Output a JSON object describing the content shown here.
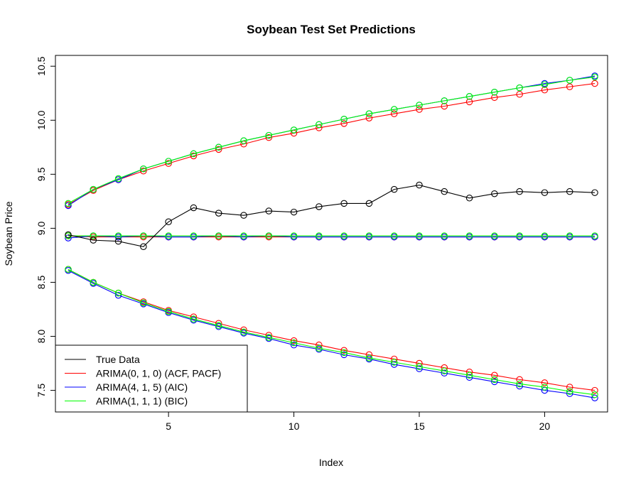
{
  "chart_data": {
    "type": "line",
    "title": "Soybean Test Set Predictions",
    "xlabel": "Index",
    "ylabel": "Soybean Price",
    "xlim": [
      1,
      22
    ],
    "ylim": [
      7.3,
      10.6
    ],
    "xticks": [
      5,
      10,
      15,
      20
    ],
    "xtick_labels": [
      "5",
      "10",
      "15",
      "20"
    ],
    "yticks": [
      7.5,
      8.0,
      8.5,
      9.0,
      9.5,
      10.0,
      10.5
    ],
    "ytick_labels": [
      "7.5",
      "8.0",
      "8.5",
      "9.0",
      "9.5",
      "10.0",
      "10.5"
    ],
    "grid": false,
    "legend_position": "bottom-left",
    "legend": [
      {
        "label": "True Data",
        "color": "#000000"
      },
      {
        "label": "ARIMA(0, 1, 0) (ACF, PACF)",
        "color": "#ff0000"
      },
      {
        "label": "ARIMA(4, 1, 5) (AIC)",
        "color": "#0000ff"
      },
      {
        "label": "ARIMA(1, 1, 1) (BIC)",
        "color": "#00ff00"
      }
    ],
    "x": [
      1,
      2,
      3,
      4,
      5,
      6,
      7,
      8,
      9,
      10,
      11,
      12,
      13,
      14,
      15,
      16,
      17,
      18,
      19,
      20,
      21,
      22
    ],
    "series": [
      {
        "key": "true",
        "color": "#000000",
        "values": [
          8.94,
          8.89,
          8.88,
          8.83,
          9.06,
          9.19,
          9.14,
          9.12,
          9.16,
          9.15,
          9.2,
          9.23,
          9.23,
          9.36,
          9.4,
          9.34,
          9.28,
          9.32,
          9.34,
          9.33,
          9.34,
          9.33
        ]
      },
      {
        "key": "arima010_mean",
        "color": "#ff0000",
        "values": [
          8.93,
          8.92,
          8.92,
          8.92,
          8.92,
          8.92,
          8.92,
          8.92,
          8.92,
          8.92,
          8.92,
          8.92,
          8.92,
          8.92,
          8.92,
          8.92,
          8.92,
          8.92,
          8.92,
          8.92,
          8.92,
          8.92
        ]
      },
      {
        "key": "arima010_upper",
        "color": "#ff0000",
        "values": [
          9.22,
          9.35,
          9.45,
          9.53,
          9.6,
          9.67,
          9.73,
          9.78,
          9.84,
          9.88,
          9.93,
          9.97,
          10.02,
          10.06,
          10.1,
          10.13,
          10.17,
          10.21,
          10.24,
          10.28,
          10.31,
          10.34
        ]
      },
      {
        "key": "arima010_lower",
        "color": "#ff0000",
        "values": [
          8.62,
          8.5,
          8.4,
          8.32,
          8.24,
          8.18,
          8.12,
          8.06,
          8.01,
          7.96,
          7.92,
          7.87,
          7.83,
          7.79,
          7.75,
          7.71,
          7.67,
          7.64,
          7.6,
          7.57,
          7.53,
          7.5
        ]
      },
      {
        "key": "arima415_mean",
        "color": "#0000ff",
        "values": [
          8.91,
          8.93,
          8.92,
          8.93,
          8.92,
          8.92,
          8.93,
          8.92,
          8.93,
          8.92,
          8.92,
          8.92,
          8.92,
          8.92,
          8.92,
          8.92,
          8.92,
          8.92,
          8.92,
          8.92,
          8.92,
          8.92
        ]
      },
      {
        "key": "arima415_upper",
        "color": "#0000ff",
        "values": [
          9.21,
          9.36,
          9.45,
          9.55,
          9.62,
          9.69,
          9.75,
          9.81,
          9.86,
          9.91,
          9.96,
          10.01,
          10.06,
          10.1,
          10.14,
          10.18,
          10.22,
          10.26,
          10.3,
          10.34,
          10.37,
          10.41
        ]
      },
      {
        "key": "arima415_lower",
        "color": "#0000ff",
        "values": [
          8.61,
          8.49,
          8.38,
          8.3,
          8.22,
          8.15,
          8.09,
          8.03,
          7.98,
          7.92,
          7.88,
          7.83,
          7.79,
          7.74,
          7.7,
          7.66,
          7.62,
          7.58,
          7.54,
          7.5,
          7.47,
          7.43
        ]
      },
      {
        "key": "arima111_mean",
        "color": "#00ff00",
        "values": [
          8.93,
          8.93,
          8.93,
          8.93,
          8.93,
          8.93,
          8.93,
          8.93,
          8.93,
          8.93,
          8.93,
          8.93,
          8.93,
          8.93,
          8.93,
          8.93,
          8.93,
          8.93,
          8.93,
          8.93,
          8.93,
          8.93
        ]
      },
      {
        "key": "arima111_upper",
        "color": "#00ff00",
        "values": [
          9.23,
          9.36,
          9.46,
          9.55,
          9.62,
          9.69,
          9.75,
          9.81,
          9.86,
          9.91,
          9.96,
          10.01,
          10.06,
          10.1,
          10.14,
          10.18,
          10.22,
          10.26,
          10.3,
          10.33,
          10.37,
          10.4
        ]
      },
      {
        "key": "arima111_lower",
        "color": "#00ff00",
        "values": [
          8.62,
          8.5,
          8.4,
          8.31,
          8.23,
          8.16,
          8.1,
          8.04,
          7.99,
          7.94,
          7.89,
          7.85,
          7.8,
          7.76,
          7.72,
          7.68,
          7.64,
          7.6,
          7.56,
          7.53,
          7.49,
          7.46
        ]
      }
    ]
  }
}
